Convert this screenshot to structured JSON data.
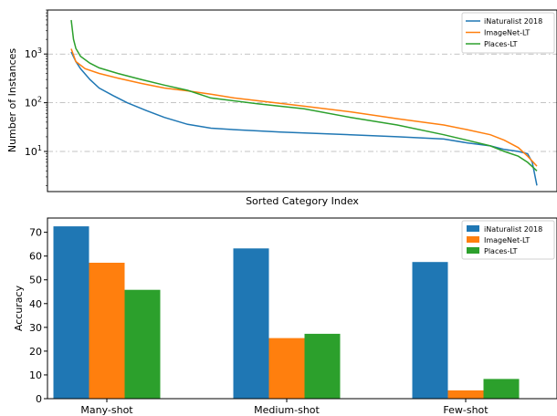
{
  "chart_data": [
    {
      "type": "line",
      "xlabel": "Sorted Category Index",
      "ylabel": "Number of Instances",
      "yscale": "log",
      "ylim": [
        1.5,
        8000
      ],
      "xlim": [
        0,
        1
      ],
      "xticks_visible": false,
      "ytick_labels": [
        "10^1",
        "10^2",
        "10^3"
      ],
      "grid": "horizontal dash-dot at major y ticks",
      "legend": "top-right",
      "series": [
        {
          "name": "iNaturalist 2018",
          "color": "#1f77b4",
          "x": [
            0.0,
            0.01,
            0.02,
            0.04,
            0.06,
            0.09,
            0.12,
            0.16,
            0.2,
            0.25,
            0.3,
            0.35,
            0.45,
            0.6,
            0.7,
            0.8,
            0.85,
            0.9,
            0.93,
            0.96,
            0.98,
            0.99,
            1.0
          ],
          "values": [
            1100,
            700,
            500,
            300,
            200,
            140,
            100,
            70,
            50,
            36,
            30,
            28,
            25,
            22,
            20,
            18,
            15,
            13,
            11,
            10,
            9,
            6,
            2
          ]
        },
        {
          "name": "ImageNet-LT",
          "color": "#ff7f0e",
          "x": [
            0.0,
            0.01,
            0.03,
            0.06,
            0.1,
            0.15,
            0.2,
            0.25,
            0.3,
            0.35,
            0.4,
            0.5,
            0.6,
            0.7,
            0.8,
            0.85,
            0.9,
            0.93,
            0.96,
            0.98,
            1.0
          ],
          "values": [
            1280,
            700,
            500,
            400,
            320,
            250,
            200,
            175,
            150,
            125,
            110,
            85,
            65,
            47,
            35,
            28,
            22,
            17,
            12,
            8,
            5
          ]
        },
        {
          "name": "Places-LT",
          "color": "#2ca02c",
          "x": [
            0.0,
            0.005,
            0.01,
            0.02,
            0.04,
            0.06,
            0.1,
            0.15,
            0.2,
            0.25,
            0.3,
            0.4,
            0.5,
            0.6,
            0.7,
            0.8,
            0.85,
            0.9,
            0.93,
            0.96,
            0.98,
            1.0
          ],
          "values": [
            4980,
            2000,
            1300,
            900,
            650,
            520,
            400,
            300,
            230,
            180,
            125,
            95,
            75,
            50,
            35,
            22,
            17,
            13,
            10,
            8,
            6,
            4
          ]
        }
      ]
    },
    {
      "type": "bar",
      "categories": [
        "Many-shot",
        "Medium-shot",
        "Few-shot"
      ],
      "ylabel": "Accuracy",
      "xlabel": "",
      "ylim": [
        0,
        76
      ],
      "yticks": [
        0,
        10,
        20,
        30,
        40,
        50,
        60,
        70
      ],
      "legend": "top-right",
      "series": [
        {
          "name": "iNaturalist 2018",
          "color": "#1f77b4",
          "values": [
            72.5,
            63.2,
            57.5
          ]
        },
        {
          "name": "ImageNet-LT",
          "color": "#ff7f0e",
          "values": [
            57.2,
            25.5,
            3.5
          ]
        },
        {
          "name": "Places-LT",
          "color": "#2ca02c",
          "values": [
            45.8,
            27.3,
            8.3
          ]
        }
      ]
    }
  ]
}
